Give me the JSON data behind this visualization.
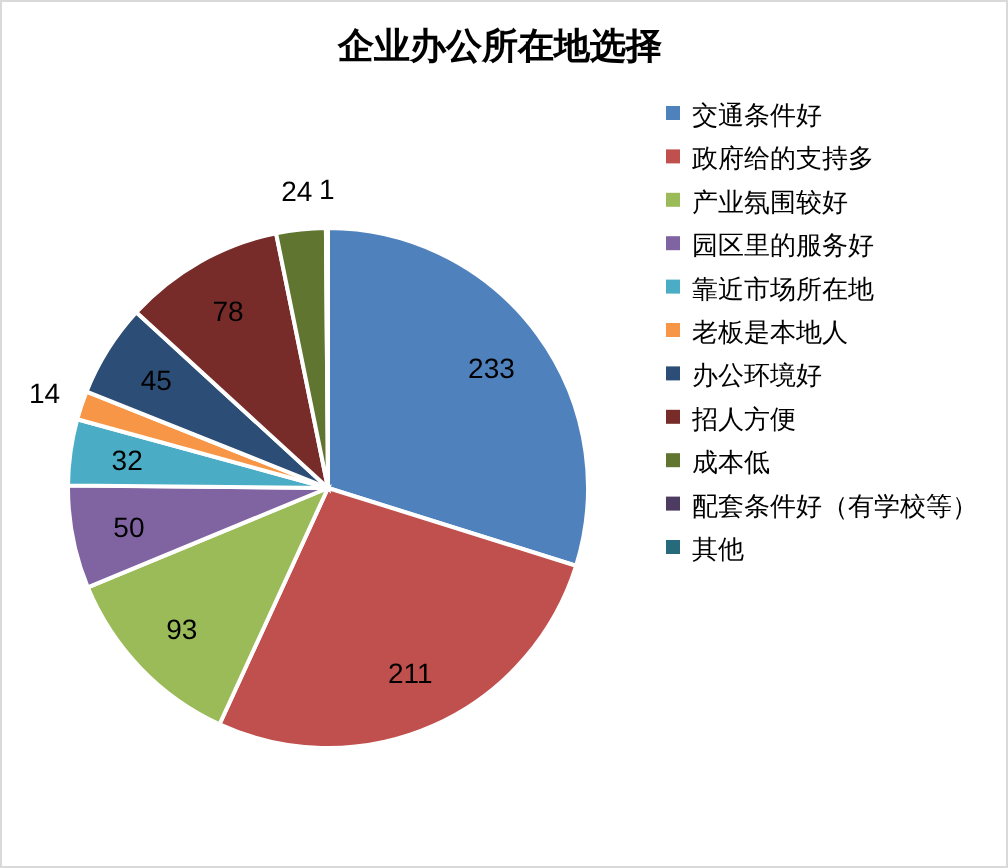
{
  "chart_data": {
    "type": "pie",
    "title": "企业办公所在地选择",
    "categories": [
      "交通条件好",
      "政府给的支持多",
      "产业氛围较好",
      "园区里的服务好",
      "靠近市场所在地",
      "老板是本地人",
      "办公环境好",
      "招人方便",
      "成本低",
      "配套条件好（有学校等）",
      "其他"
    ],
    "values": [
      233,
      211,
      93,
      50,
      32,
      14,
      45,
      78,
      24,
      1,
      0
    ],
    "value_labels": [
      "233",
      "211",
      "93",
      "50",
      "32",
      "14",
      "45",
      "78",
      "24",
      "1",
      null
    ],
    "colors": [
      "#4f81bd",
      "#c0504d",
      "#9bbb59",
      "#8064a2",
      "#4bacc6",
      "#f79646",
      "#2c4d75",
      "#772c2a",
      "#5f7530",
      "#4d3b62",
      "#276a7c"
    ],
    "legend": "right"
  }
}
